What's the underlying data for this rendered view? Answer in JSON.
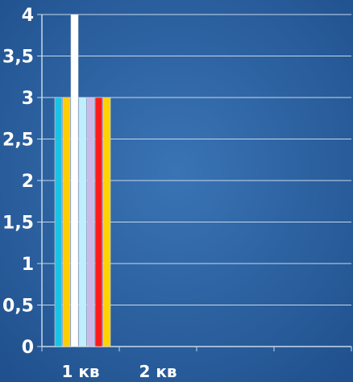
{
  "chart_data": {
    "type": "bar",
    "categories": [
      "1 кв",
      "2 кв"
    ],
    "y_ticks": [
      "0",
      "0,5",
      "1",
      "1,5",
      "2",
      "2,5",
      "3",
      "3,5",
      "4"
    ],
    "ylim": [
      0,
      4
    ],
    "grid": true,
    "series": [
      {
        "values": [
          3,
          0
        ],
        "color": "#19c3e6"
      },
      {
        "values": [
          3,
          0
        ],
        "color": "#ffcc00"
      },
      {
        "values": [
          4,
          0
        ],
        "color": "#ffffff"
      },
      {
        "values": [
          3,
          0
        ],
        "color": "#bfefff"
      },
      {
        "values": [
          3,
          0
        ],
        "color": "#c9b8ea"
      },
      {
        "values": [
          3,
          0
        ],
        "color": "#ff1a1a"
      },
      {
        "values": [
          3,
          0
        ],
        "color": "#ffd200"
      }
    ]
  },
  "colors": {
    "background": "#1f4f8c",
    "background_light": "#3a74b5",
    "gridline": "#c8d8ea",
    "text": "#ffffff"
  }
}
